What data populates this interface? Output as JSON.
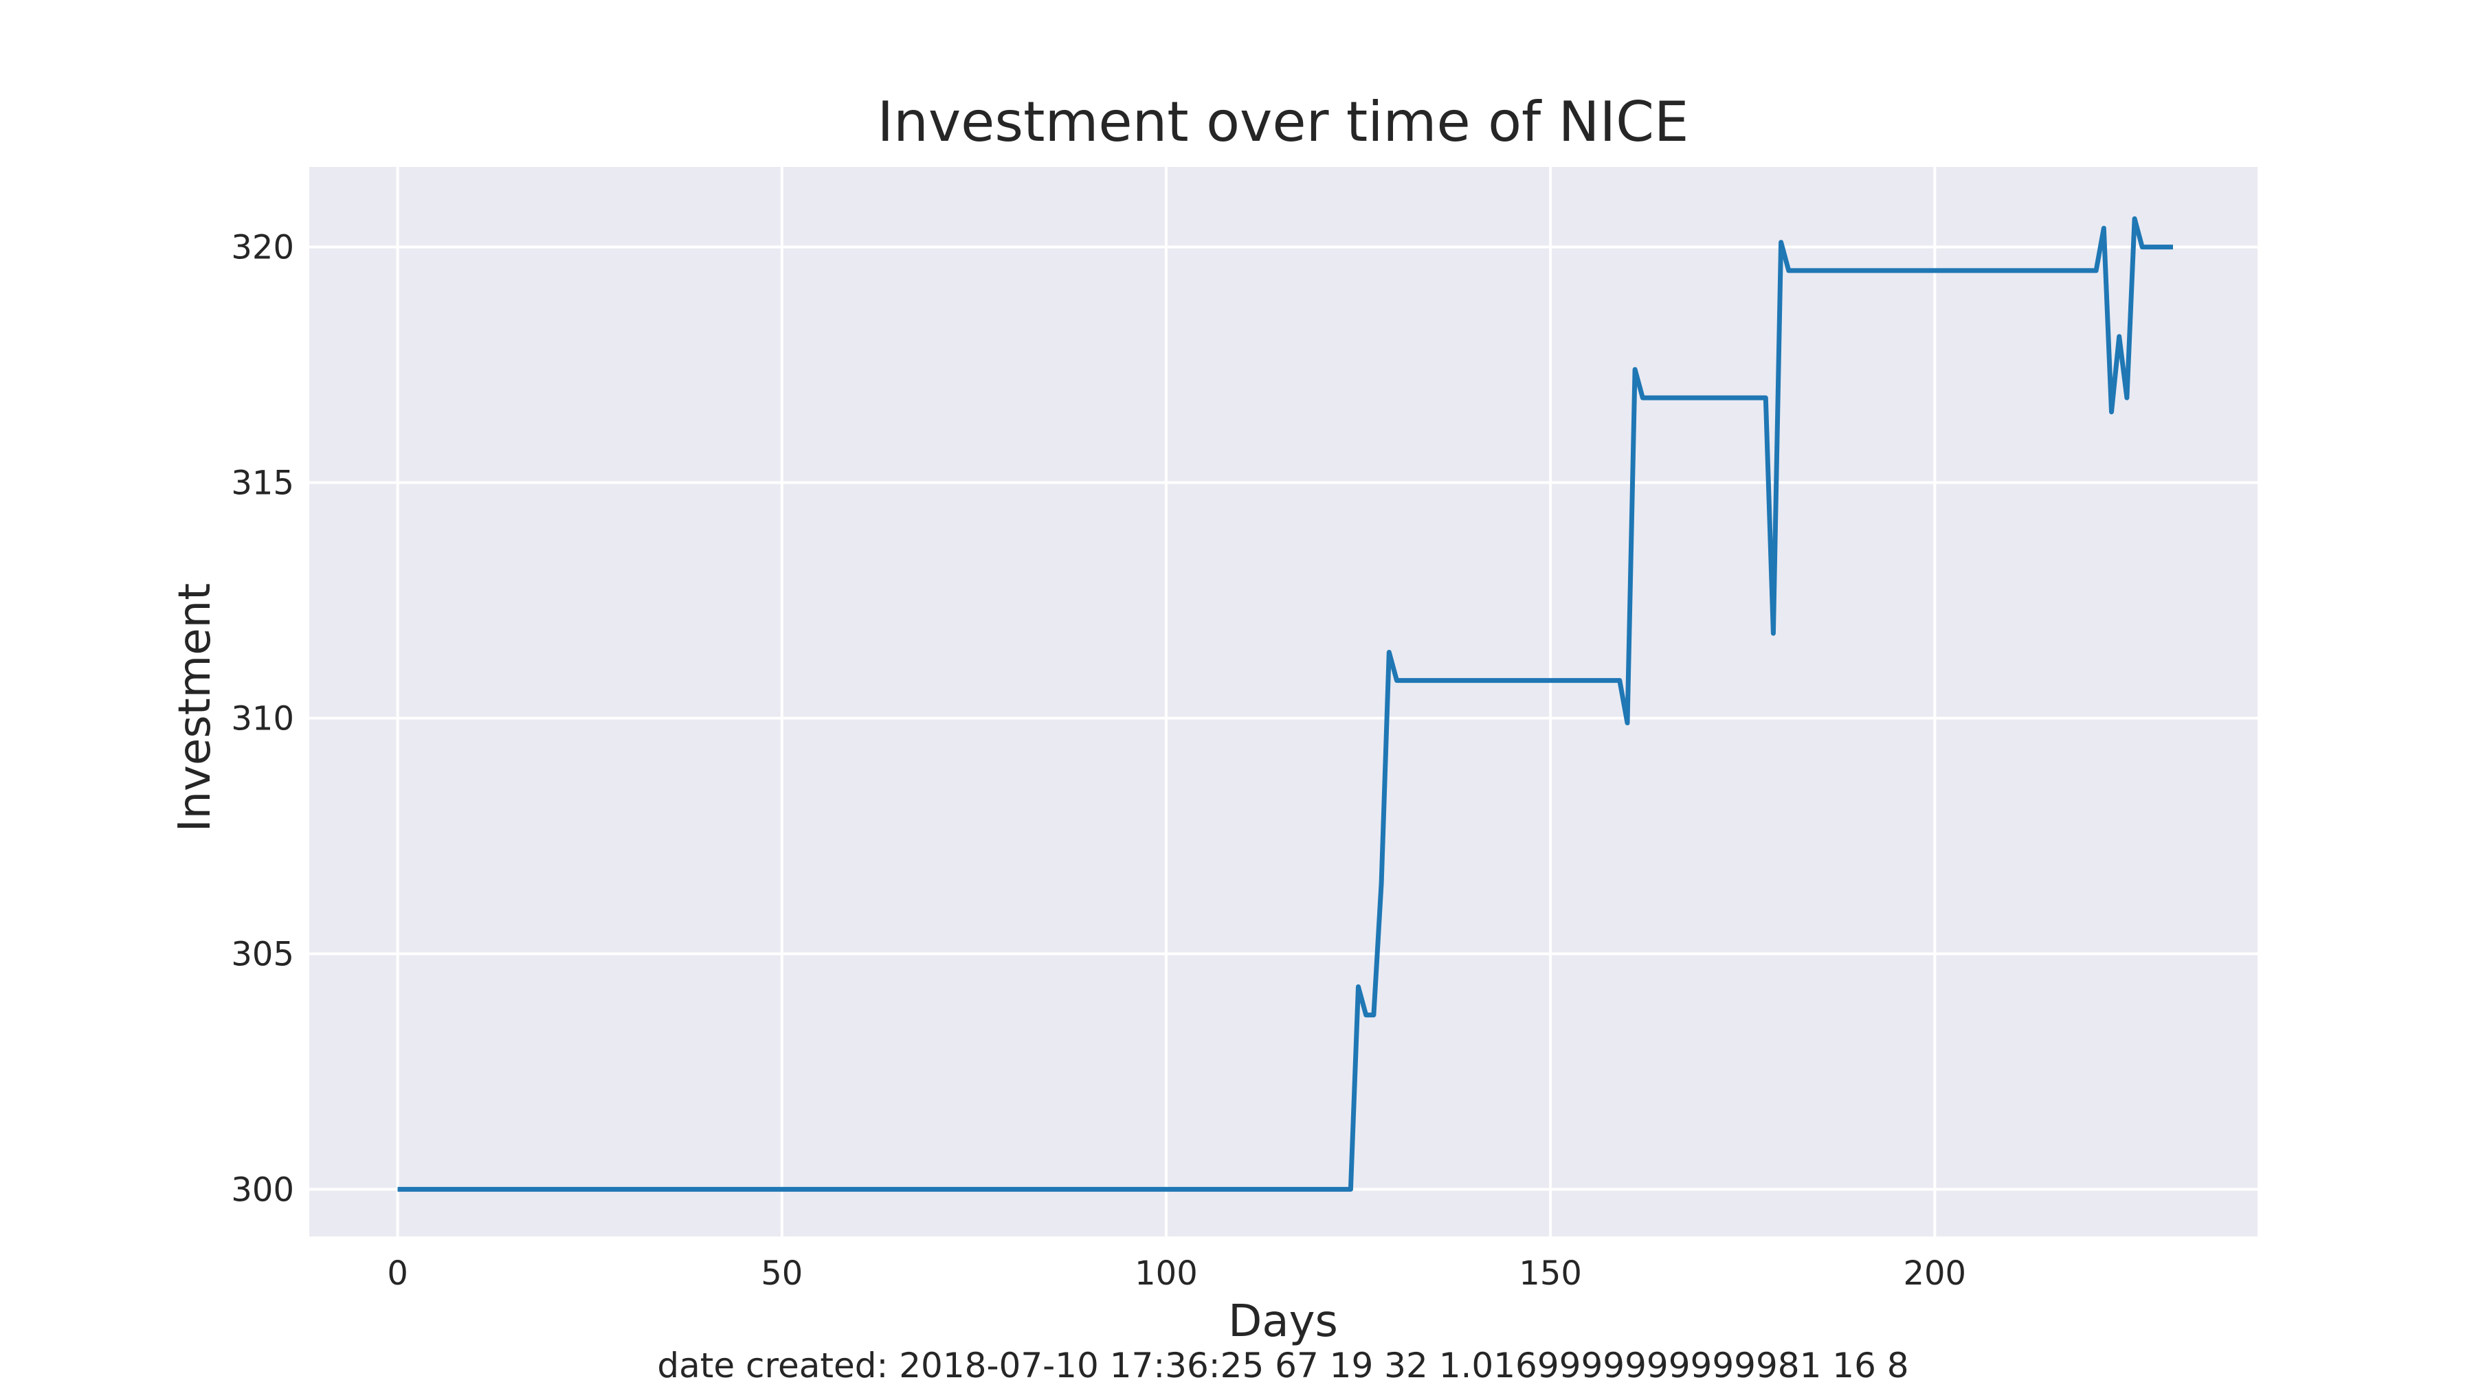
{
  "chart_data": {
    "type": "line",
    "title": "Investment over time of NICE",
    "xlabel": "Days",
    "ylabel": "Investment",
    "xlim": [
      -11.5,
      242
    ],
    "ylim": [
      299.0,
      321.7
    ],
    "xticks": [
      0,
      50,
      100,
      150,
      200
    ],
    "yticks": [
      300,
      305,
      310,
      315,
      320
    ],
    "grid": true,
    "background_color": "#eaeaf2",
    "grid_color": "#ffffff",
    "series": [
      {
        "color": "#1f77b4",
        "x": [
          0,
          124,
          125,
          126,
          127,
          128,
          129,
          130,
          159,
          160,
          161,
          162,
          178,
          179,
          180,
          181,
          221,
          222,
          223,
          224,
          225,
          226,
          227,
          231
        ],
        "y": [
          300.0,
          300.0,
          304.3,
          303.7,
          303.7,
          306.5,
          311.4,
          310.8,
          310.8,
          309.9,
          317.4,
          316.8,
          316.8,
          311.8,
          320.1,
          319.5,
          319.5,
          320.4,
          316.5,
          318.1,
          316.8,
          320.6,
          320.0,
          320.0
        ]
      }
    ]
  },
  "footer": {
    "text": "date created: 2018-07-10 17:36:25 67 19 32 1.0169999999999981 16 8"
  }
}
